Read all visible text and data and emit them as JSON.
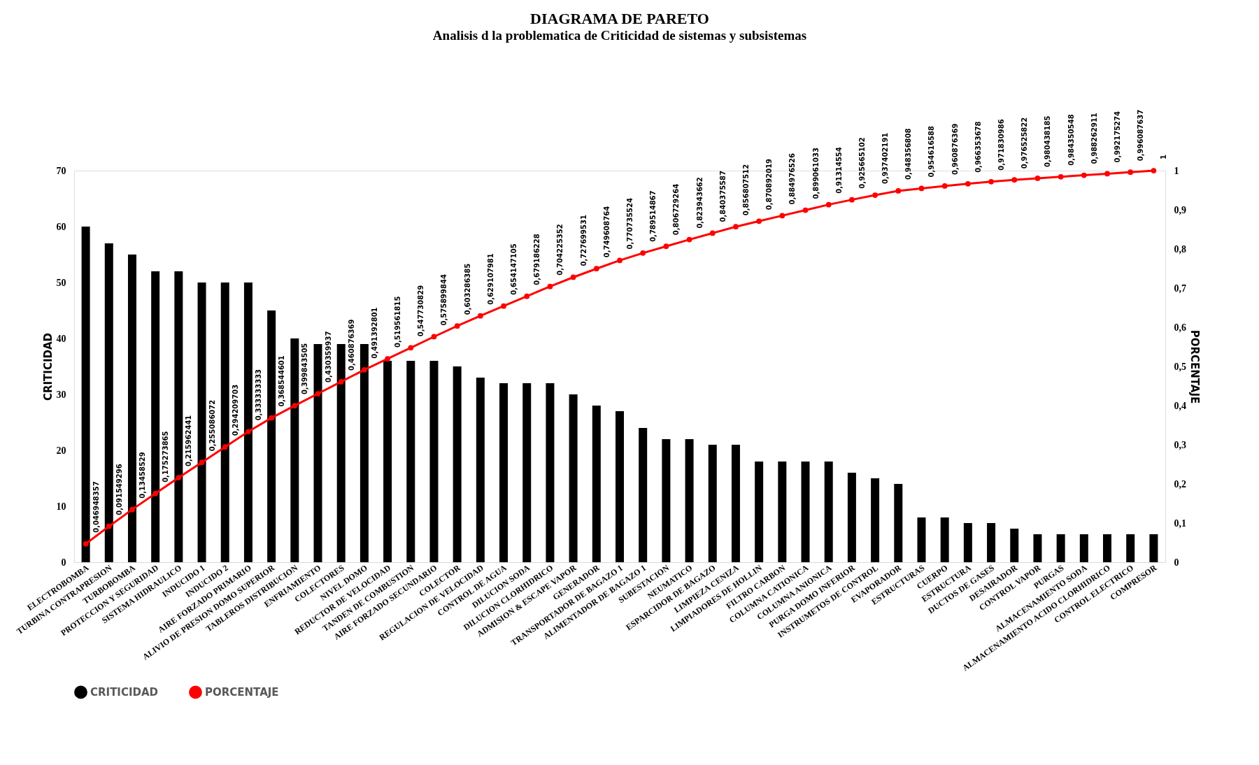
{
  "chart_data": {
    "type": "bar",
    "title": "DIAGRAMA DE PARETO",
    "subtitle": "Analisis d la problematica de Criticidad de sistemas y subsistemas",
    "ylabel": "CRITICIDAD",
    "y2label": "PORCENTAJE",
    "categories": [
      "ELECTROBOMBA",
      "TURBINA CONTRAPRESION",
      "TURBOBOMBA",
      "PROTECCION Y SEGURIDAD",
      "SISTEMA HIDRAULICO",
      "INDUCIDO 1",
      "INDUCIDO 2",
      "AIRE FORZADO PRIMARIO",
      "ALIVIO DE PRESION DOMO SUPERIOR",
      "TABLEROS DISTRIBUCION",
      "ENFRIAMIENTO",
      "COLECTORES",
      "NIVEL DOMO",
      "REDUCTOR DE VELOCIDAD",
      "TANDEN DE COMBUSTION",
      "AIRE FORZADO SECUNDARIO",
      "COLECTOR",
      "REGULACION DE VELOCIDAD",
      "CONTROL DE AGUA",
      "DILUCION SODA",
      "DILUCION  CLORHIDRICO",
      "ADMISION & ESCAPE VAPOR",
      "GENERADOR",
      "TRANSPORTADOR DE BAGAZO 1",
      "ALIMENTADOR DE BAGAZO 1",
      "SUBESTACION",
      "NEUMATICO",
      "ESPARCIDOR DE BAGAZO",
      "LIMPIEZA CENIZA",
      "LIMPIADORES DE HOLLIN",
      "FILTRO CARBON",
      "COLUMNA CATIONICA",
      "COLUMNA ANIONICA",
      "PURGA  DOMO INFERIOR",
      "INSTRUMETOS DE CONTROL",
      "EVAPORADOR",
      "ESTRUCTURAS",
      "CUERPO",
      "ESTRUCTURA",
      "DUCTOS DE GASES",
      "DESAIRADOR",
      "CONTROL VAPOR",
      "PURGAS",
      "ALMACENAMIENTO SODA",
      "ALMACENAMIENTO ACIDO CLORHIDRICO",
      "CONTROL ELECTRICO",
      "COMPRESOR"
    ],
    "ylim": [
      0,
      70
    ],
    "yticks": [
      0,
      10,
      20,
      30,
      40,
      50,
      60,
      70
    ],
    "y2lim": [
      0,
      1
    ],
    "y2ticks": [
      {
        "value": 0,
        "label": "0"
      },
      {
        "value": 0.1,
        "label": "0,1"
      },
      {
        "value": 0.2,
        "label": "0,2"
      },
      {
        "value": 0.3,
        "label": "0,3"
      },
      {
        "value": 0.4,
        "label": "0,4"
      },
      {
        "value": 0.5,
        "label": "0,5"
      },
      {
        "value": 0.6,
        "label": "0,6"
      },
      {
        "value": 0.7,
        "label": "0,7"
      },
      {
        "value": 0.8,
        "label": "0,8"
      },
      {
        "value": 0.9,
        "label": "0,9"
      },
      {
        "value": 1,
        "label": "1"
      }
    ],
    "legend": "bottom",
    "grid": false,
    "marker": "circle",
    "series": [
      {
        "name": "CRITICIDAD",
        "color": "#000000",
        "values": [
          60,
          57,
          55,
          52,
          52,
          50,
          50,
          50,
          45,
          40,
          39,
          39,
          39,
          36,
          36,
          36,
          35,
          33,
          32,
          32,
          32,
          30,
          28,
          27,
          24,
          22,
          22,
          21,
          21,
          18,
          18,
          18,
          18,
          16,
          15,
          14,
          8,
          8,
          7,
          7,
          6,
          5,
          5,
          5,
          5,
          5,
          5
        ]
      },
      {
        "name": "PORCENTAJE",
        "type": "line",
        "axis": "y2",
        "color": "#ff0000",
        "values": [
          0.046948357,
          0.091549296,
          0.13458529,
          0.175273865,
          0.215962441,
          0.255086072,
          0.294209703,
          0.333333333,
          0.368544601,
          0.399843505,
          0.430359937,
          0.460876369,
          0.491392801,
          0.519561815,
          0.547730829,
          0.575899844,
          0.603286385,
          0.629107981,
          0.654147105,
          0.679186228,
          0.704225352,
          0.727699531,
          0.749608764,
          0.770735524,
          0.789514867,
          0.806729264,
          0.823943662,
          0.840375587,
          0.856807512,
          0.870892019,
          0.884976526,
          0.899061033,
          0.91314554,
          0.925665102,
          0.937402191,
          0.948356808,
          0.954616588,
          0.960876369,
          0.966353678,
          0.971830986,
          0.976525822,
          0.980438185,
          0.984350548,
          0.988262911,
          0.992175274,
          0.996087637,
          1
        ],
        "value_labels": [
          "0,046948357",
          "0,091549296",
          "0,13458529",
          "0,175273865",
          "0,215962441",
          "0,255086072",
          "0,294209703",
          "0,333333333",
          "0,368544601",
          "0,399843505",
          "0,430359937",
          "0,460876369",
          "0,491392801",
          "0,519561815",
          "0,547730829",
          "0,575899844",
          "0,603286385",
          "0,629107981",
          "0,654147105",
          "0,679186228",
          "0,704225352",
          "0,727699531",
          "0,749608764",
          "0,770735524",
          "0,789514867",
          "0,806729264",
          "0,823943662",
          "0,840375587",
          "0,856807512",
          "0,870892019",
          "0,884976526",
          "0,899061033",
          "0,91314554",
          "0,925665102",
          "0,937402191",
          "0,948356808",
          "0,954616588",
          "0,960876369",
          "0,966353678",
          "0,971830986",
          "0,976525822",
          "0,980438185",
          "0,984350548",
          "0,988262911",
          "0,992175274",
          "0,996087637",
          "1"
        ]
      }
    ]
  }
}
